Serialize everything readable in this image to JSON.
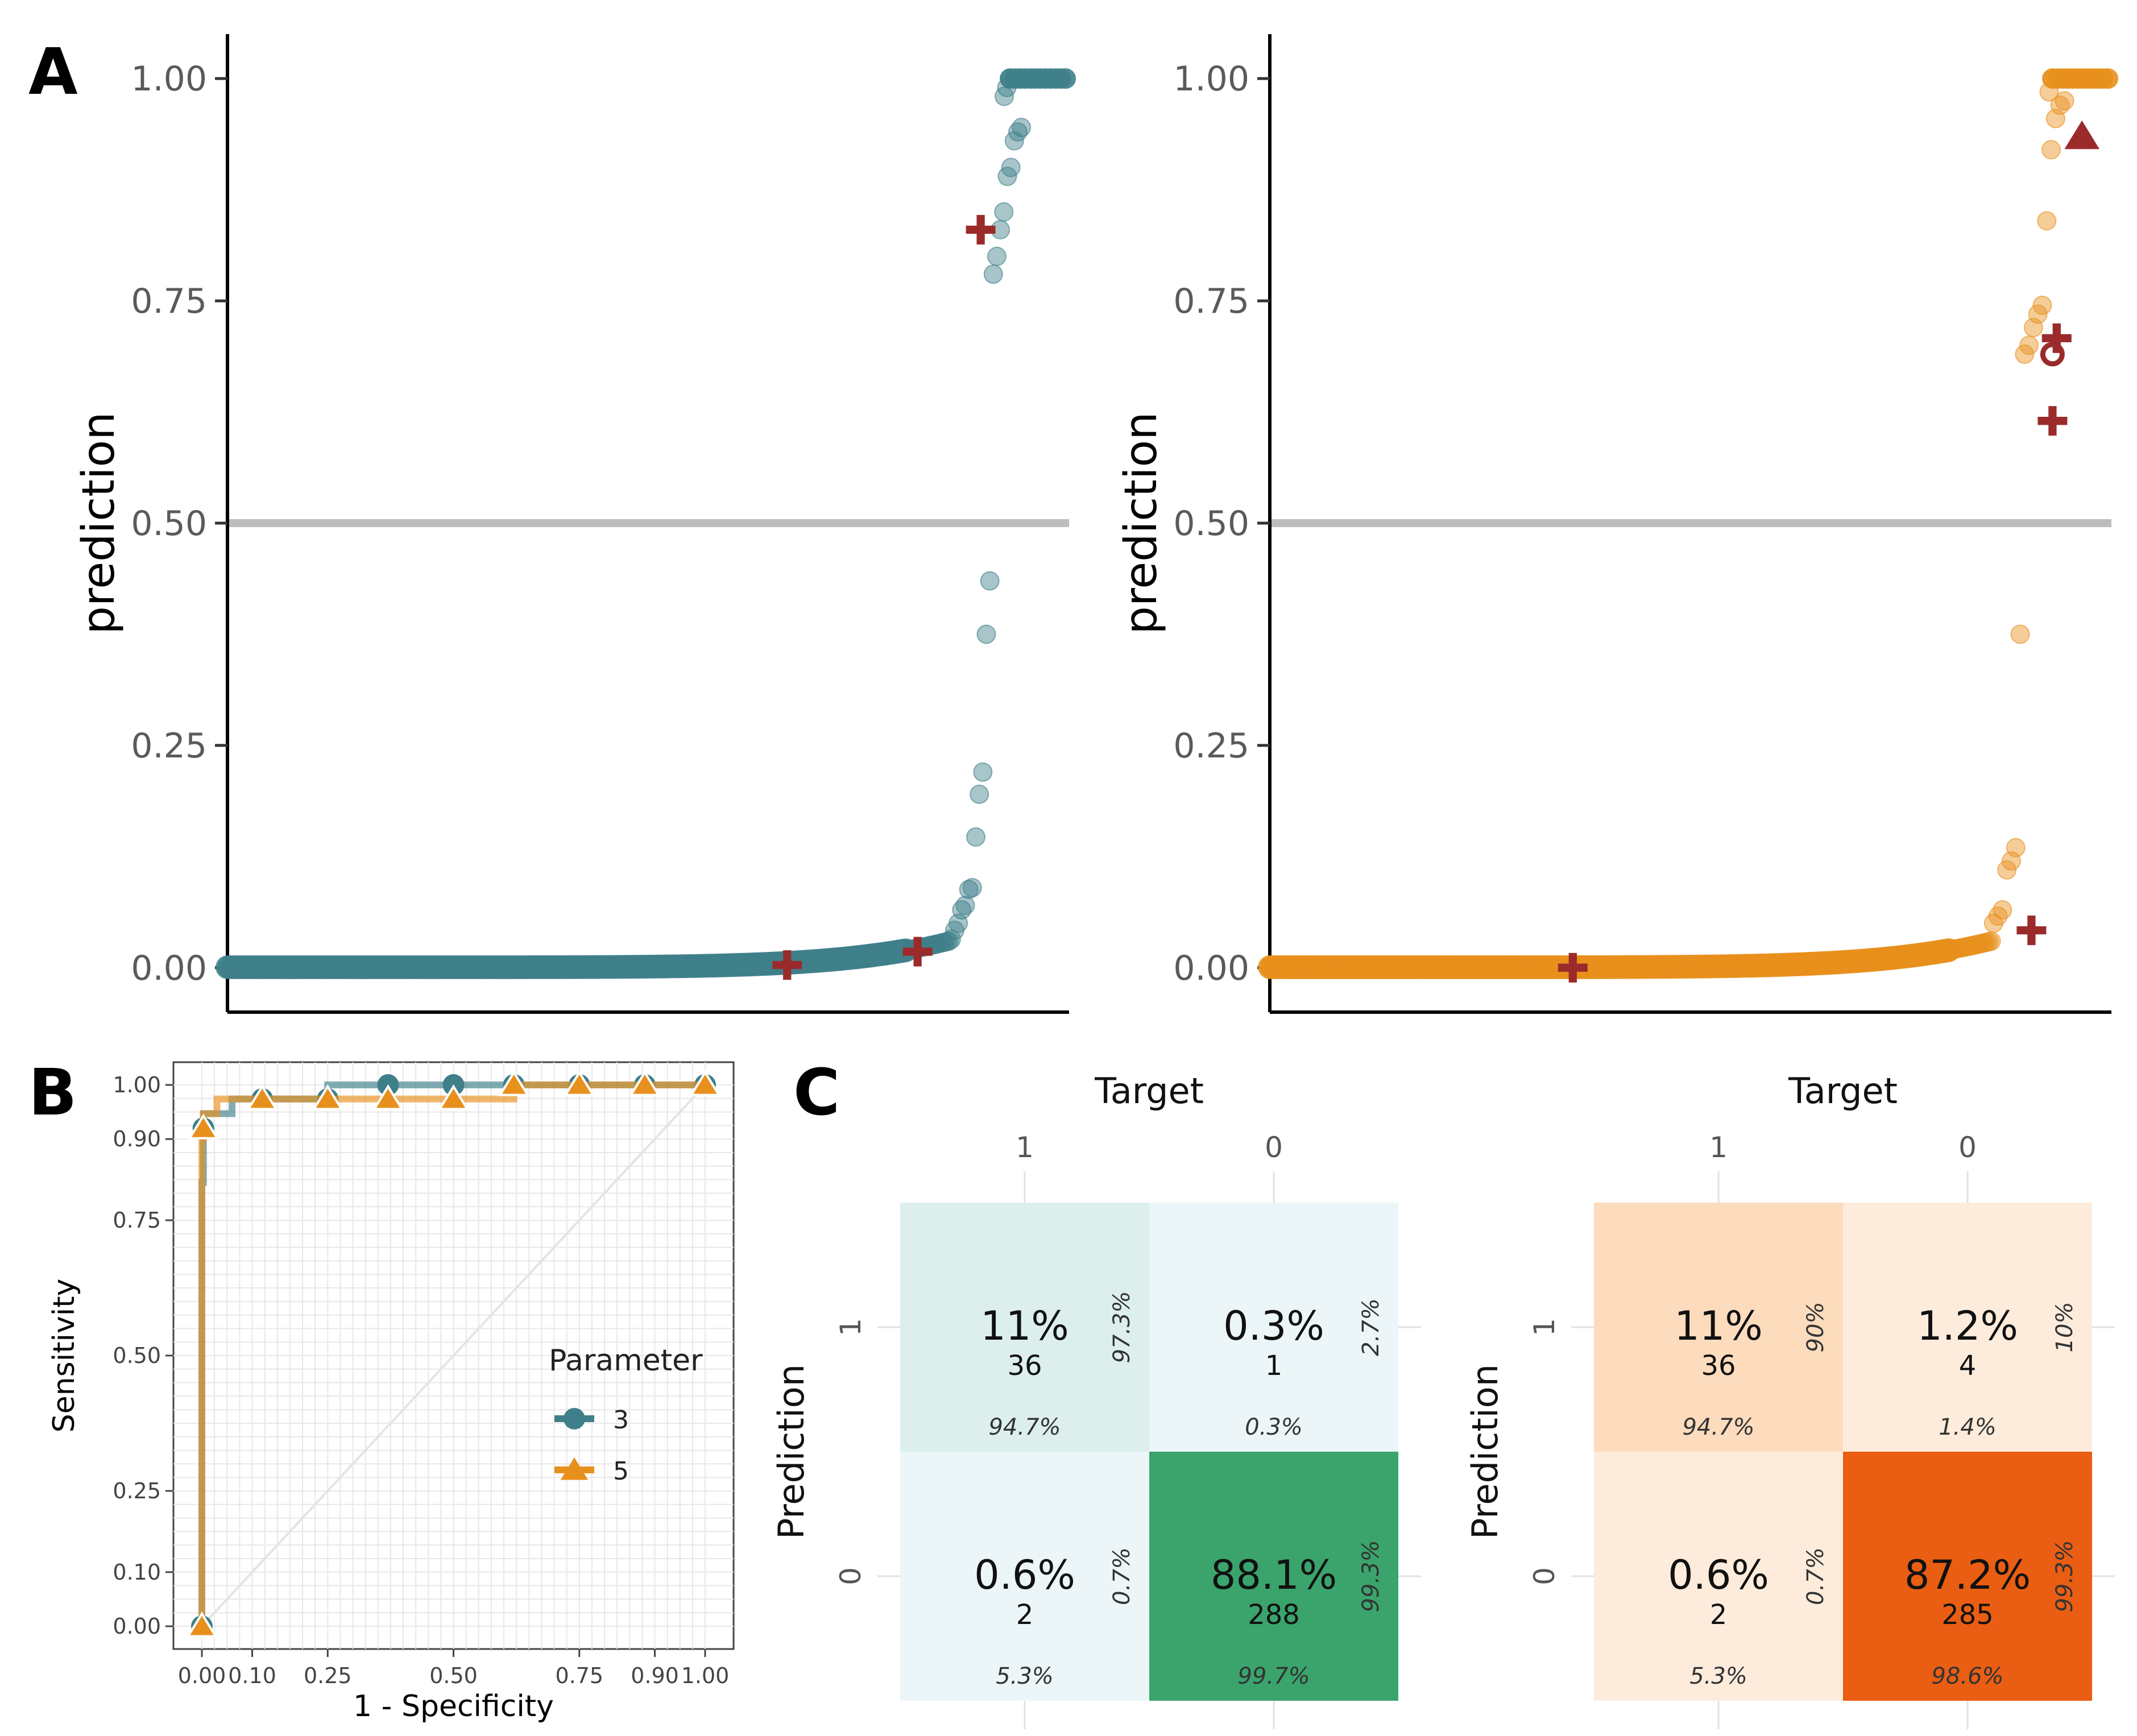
{
  "panel_labels": {
    "a": "A",
    "b": "B",
    "c": "C"
  },
  "colors": {
    "teal": "#3f7f8a",
    "orange": "#e8901d",
    "red_marker": "#9b2b2b",
    "threshold": "#bdbdbd",
    "teal_cell_high": "#3aa46c",
    "teal_cell_mid": "#dcefed",
    "teal_cell_low": "#ecf6f8",
    "orange_cell_high": "#e95e12",
    "orange_cell_mid": "#fddcbe",
    "orange_cell_low": "#fdecdc"
  },
  "chart_data": [
    {
      "id": "A-left",
      "type": "scatter",
      "ylabel": "prediction",
      "xlabel": "",
      "ylim": [
        -0.05,
        1.05
      ],
      "yticks": [
        "0.00",
        "0.25",
        "0.50",
        "0.75",
        "1.00"
      ],
      "threshold": 0.5,
      "series_color": "teal",
      "n_points": 327,
      "upper_points": [
        0.78,
        0.8,
        0.83,
        0.85,
        0.89,
        0.9,
        0.93,
        0.94,
        0.945,
        0.98,
        0.99,
        1.0
      ],
      "mid_points": [
        0.375,
        0.435,
        0.22,
        0.195,
        0.147,
        0.09,
        0.088,
        0.07,
        0.065,
        0.05,
        0.042,
        0.032
      ],
      "markers": [
        {
          "shape": "plus",
          "rank": 0.665,
          "value": 0.003
        },
        {
          "shape": "plus",
          "rank": 0.82,
          "value": 0.018
        },
        {
          "shape": "plus",
          "rank": 0.895,
          "value": 0.83
        }
      ]
    },
    {
      "id": "A-right",
      "type": "scatter",
      "ylabel": "prediction",
      "xlabel": "",
      "ylim": [
        -0.05,
        1.05
      ],
      "yticks": [
        "0.00",
        "0.25",
        "0.50",
        "0.75",
        "1.00"
      ],
      "threshold": 0.5,
      "series_color": "orange",
      "n_points": 327,
      "upper_points": [
        0.69,
        0.7,
        0.72,
        0.735,
        0.745,
        0.84,
        0.92,
        0.955,
        0.97,
        0.975,
        0.985,
        1.0
      ],
      "mid_points": [
        0.375,
        0.135,
        0.12,
        0.11,
        0.065,
        0.058,
        0.05
      ],
      "markers": [
        {
          "shape": "plus",
          "rank": 0.36,
          "value": 0.0
        },
        {
          "shape": "plus",
          "rank": 0.905,
          "value": 0.042
        },
        {
          "shape": "plus",
          "rank": 0.93,
          "value": 0.615
        },
        {
          "shape": "plus",
          "rank": 0.935,
          "value": 0.708
        },
        {
          "shape": "circle-open",
          "rank": 0.93,
          "value": 0.69
        },
        {
          "shape": "triangle",
          "rank": 0.965,
          "value": 0.935
        }
      ]
    },
    {
      "id": "B",
      "type": "line",
      "title": "",
      "xlabel": "1 - Specificity",
      "ylabel": "Sensitivity",
      "xlim": [
        0,
        1
      ],
      "ylim": [
        0,
        1
      ],
      "xticks": [
        "0.00",
        "0.10",
        "0.25",
        "0.50",
        "0.75",
        "0.90",
        "1.00"
      ],
      "yticks": [
        "0.00",
        "0.10",
        "0.25",
        "0.50",
        "0.75",
        "0.90",
        "1.00"
      ],
      "legend": {
        "title": "Parameter",
        "position": "right"
      },
      "series": [
        {
          "name": "3",
          "color": "teal",
          "marker": "circle",
          "x": [
            0,
            0,
            0.003,
            0.003,
            0.06,
            0.06,
            0.25,
            0.25,
            1.0
          ],
          "y": [
            0,
            0.82,
            0.82,
            0.947,
            0.947,
            0.974,
            0.974,
            1.0,
            1.0
          ],
          "points_x": [
            0,
            0.003,
            0.12,
            0.25,
            0.37,
            0.5,
            0.62,
            0.75,
            0.88,
            1.0
          ],
          "points_y": [
            0,
            0.92,
            0.974,
            0.974,
            1.0,
            1.0,
            1.0,
            1.0,
            1.0,
            1.0
          ]
        },
        {
          "name": "5",
          "color": "orange",
          "marker": "triangle",
          "x": [
            0,
            0,
            0.003,
            0.003,
            0.03,
            0.03,
            0.62,
            0.62,
            1.0
          ],
          "y": [
            0,
            0.9,
            0.9,
            0.947,
            0.947,
            0.974,
            0.974,
            1.0,
            1.0
          ],
          "points_x": [
            0,
            0.003,
            0.12,
            0.25,
            0.37,
            0.5,
            0.62,
            0.75,
            0.88,
            1.0
          ],
          "points_y": [
            0,
            0.92,
            0.974,
            0.974,
            0.974,
            0.974,
            1.0,
            1.0,
            1.0,
            1.0
          ]
        }
      ]
    },
    {
      "id": "C-left",
      "type": "table",
      "col_title": "Target",
      "row_title": "Prediction",
      "col_labels": [
        "1",
        "0"
      ],
      "row_labels": [
        "1",
        "0"
      ],
      "palette": "teal",
      "cells": [
        {
          "row": "1",
          "col": "1",
          "pct": "11%",
          "count": "36",
          "col_pct": "94.7%",
          "row_pct": "97.3%",
          "shade": "mid"
        },
        {
          "row": "1",
          "col": "0",
          "pct": "0.3%",
          "count": "1",
          "col_pct": "0.3%",
          "row_pct": "2.7%",
          "shade": "low"
        },
        {
          "row": "0",
          "col": "1",
          "pct": "0.6%",
          "count": "2",
          "col_pct": "5.3%",
          "row_pct": "0.7%",
          "shade": "low"
        },
        {
          "row": "0",
          "col": "0",
          "pct": "88.1%",
          "count": "288",
          "col_pct": "99.7%",
          "row_pct": "99.3%",
          "shade": "high"
        }
      ]
    },
    {
      "id": "C-right",
      "type": "table",
      "col_title": "Target",
      "row_title": "Prediction",
      "col_labels": [
        "1",
        "0"
      ],
      "row_labels": [
        "1",
        "0"
      ],
      "palette": "orange",
      "cells": [
        {
          "row": "1",
          "col": "1",
          "pct": "11%",
          "count": "36",
          "col_pct": "94.7%",
          "row_pct": "90%",
          "shade": "mid"
        },
        {
          "row": "1",
          "col": "0",
          "pct": "1.2%",
          "count": "4",
          "col_pct": "1.4%",
          "row_pct": "10%",
          "shade": "low"
        },
        {
          "row": "0",
          "col": "1",
          "pct": "0.6%",
          "count": "2",
          "col_pct": "5.3%",
          "row_pct": "0.7%",
          "shade": "low"
        },
        {
          "row": "0",
          "col": "0",
          "pct": "87.2%",
          "count": "285",
          "col_pct": "98.6%",
          "row_pct": "99.3%",
          "shade": "high"
        }
      ]
    }
  ]
}
